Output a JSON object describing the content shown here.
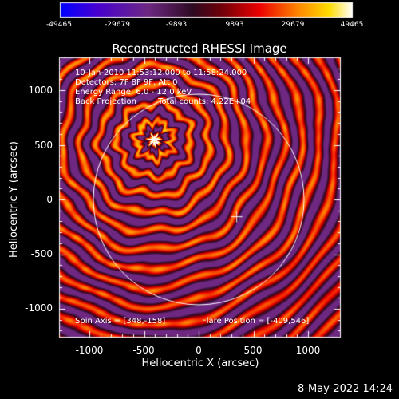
{
  "colorbar": {
    "ticks": [
      "-49465",
      "-29679",
      "-9893",
      "9893",
      "29679",
      "49465"
    ]
  },
  "title": "Reconstructed RHESSI Image",
  "info": {
    "line1": "10-Jan-2010 11:53:12.000 to 11:58:24.000",
    "line2": "Detectors: 7F 8F 9F, Att 0",
    "line3": "Energy Range: 6.0 - 12.0 keV",
    "line4_left": "Back Projection",
    "line4_right": "Total counts: 4.22E+04"
  },
  "axes": {
    "xlabel": "Heliocentric X (arcsec)",
    "ylabel": "Heliocentric Y (arcsec)",
    "xticks": [
      "-1000",
      "-500",
      "0",
      "500",
      "1000"
    ],
    "yticks": [
      "1000",
      "500",
      "0",
      "-500",
      "-1000"
    ]
  },
  "footer": {
    "spin_axis": "Spin Axis = [348,-158]",
    "flare_position": "Flare Position = [-409,546]",
    "timestamp": "8-May-2022 14:24"
  },
  "colors": {
    "background": "#000000",
    "foreground": "#ffffff"
  }
}
